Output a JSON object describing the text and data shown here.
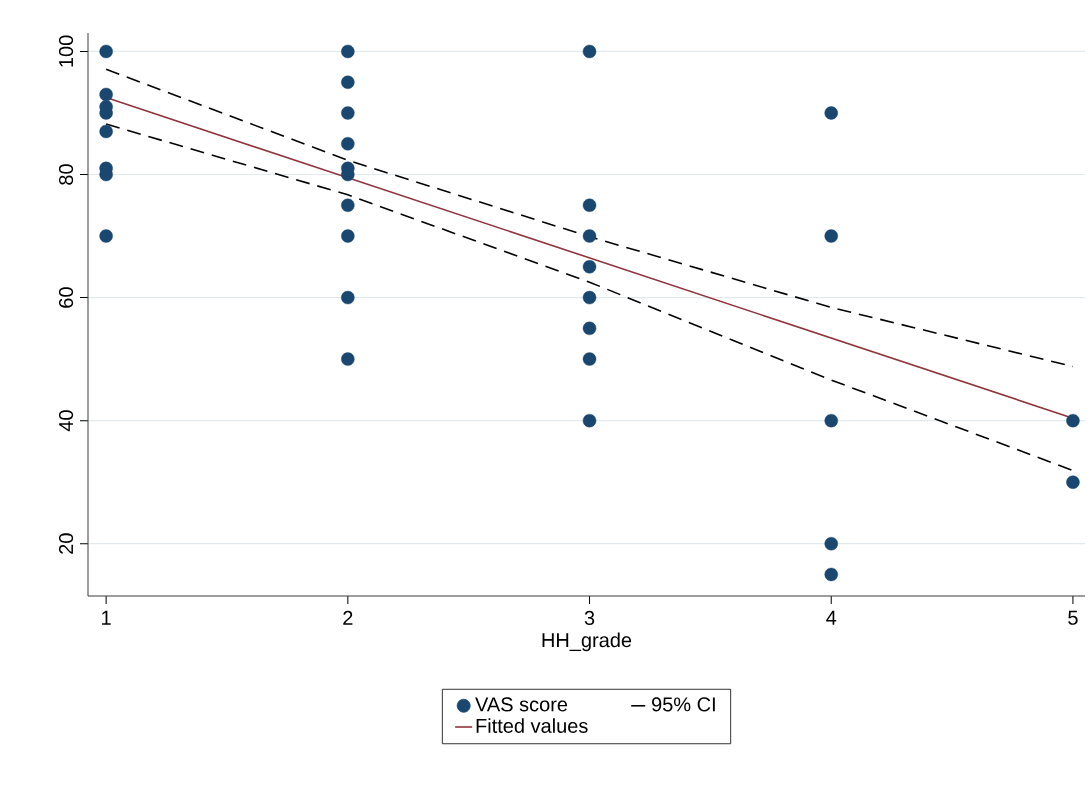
{
  "chart_data": {
    "type": "scatter",
    "xlabel": "HH_grade",
    "xlim": [
      0.925,
      5.05
    ],
    "ylim": [
      11.5,
      103
    ],
    "xticks": [
      1,
      2,
      3,
      4,
      5
    ],
    "yticks": [
      20,
      40,
      60,
      80,
      100
    ],
    "grid": "y",
    "legend": "bottom",
    "series": [
      {
        "name": "VAS score",
        "type": "scatter",
        "marker": "circle",
        "color": "#1a476f",
        "x": [
          1,
          1,
          1,
          1,
          1,
          1,
          1,
          1,
          2,
          2,
          2,
          2,
          2,
          2,
          2,
          2,
          2,
          2,
          3,
          3,
          3,
          3,
          3,
          3,
          3,
          3,
          4,
          4,
          4,
          4,
          4,
          5,
          5
        ],
        "values": [
          100,
          93,
          91,
          90,
          87,
          81,
          80,
          70,
          100,
          95,
          90,
          85,
          81,
          80,
          75,
          70,
          60,
          50,
          100,
          75,
          70,
          65,
          60,
          55,
          50,
          40,
          90,
          70,
          40,
          20,
          15,
          40,
          30
        ]
      },
      {
        "name": "95% CI",
        "type": "line",
        "line_style": "dashed",
        "color": "#000000",
        "x": [
          1,
          2,
          3,
          4,
          5
        ],
        "values": [
          97.1,
          82.3,
          69.9,
          58.4,
          48.8
        ]
      },
      {
        "name": "Fitted values",
        "type": "line",
        "line_style": "solid",
        "color": "#90353b",
        "x": [
          1,
          5
        ],
        "values": [
          92.5,
          40.4
        ]
      },
      {
        "type": "line",
        "line_style": "dashed",
        "color": "#000000",
        "x": [
          1,
          2,
          3,
          4,
          5
        ],
        "values": [
          88.2,
          76.7,
          62.5,
          46.6,
          31.9
        ]
      }
    ]
  }
}
